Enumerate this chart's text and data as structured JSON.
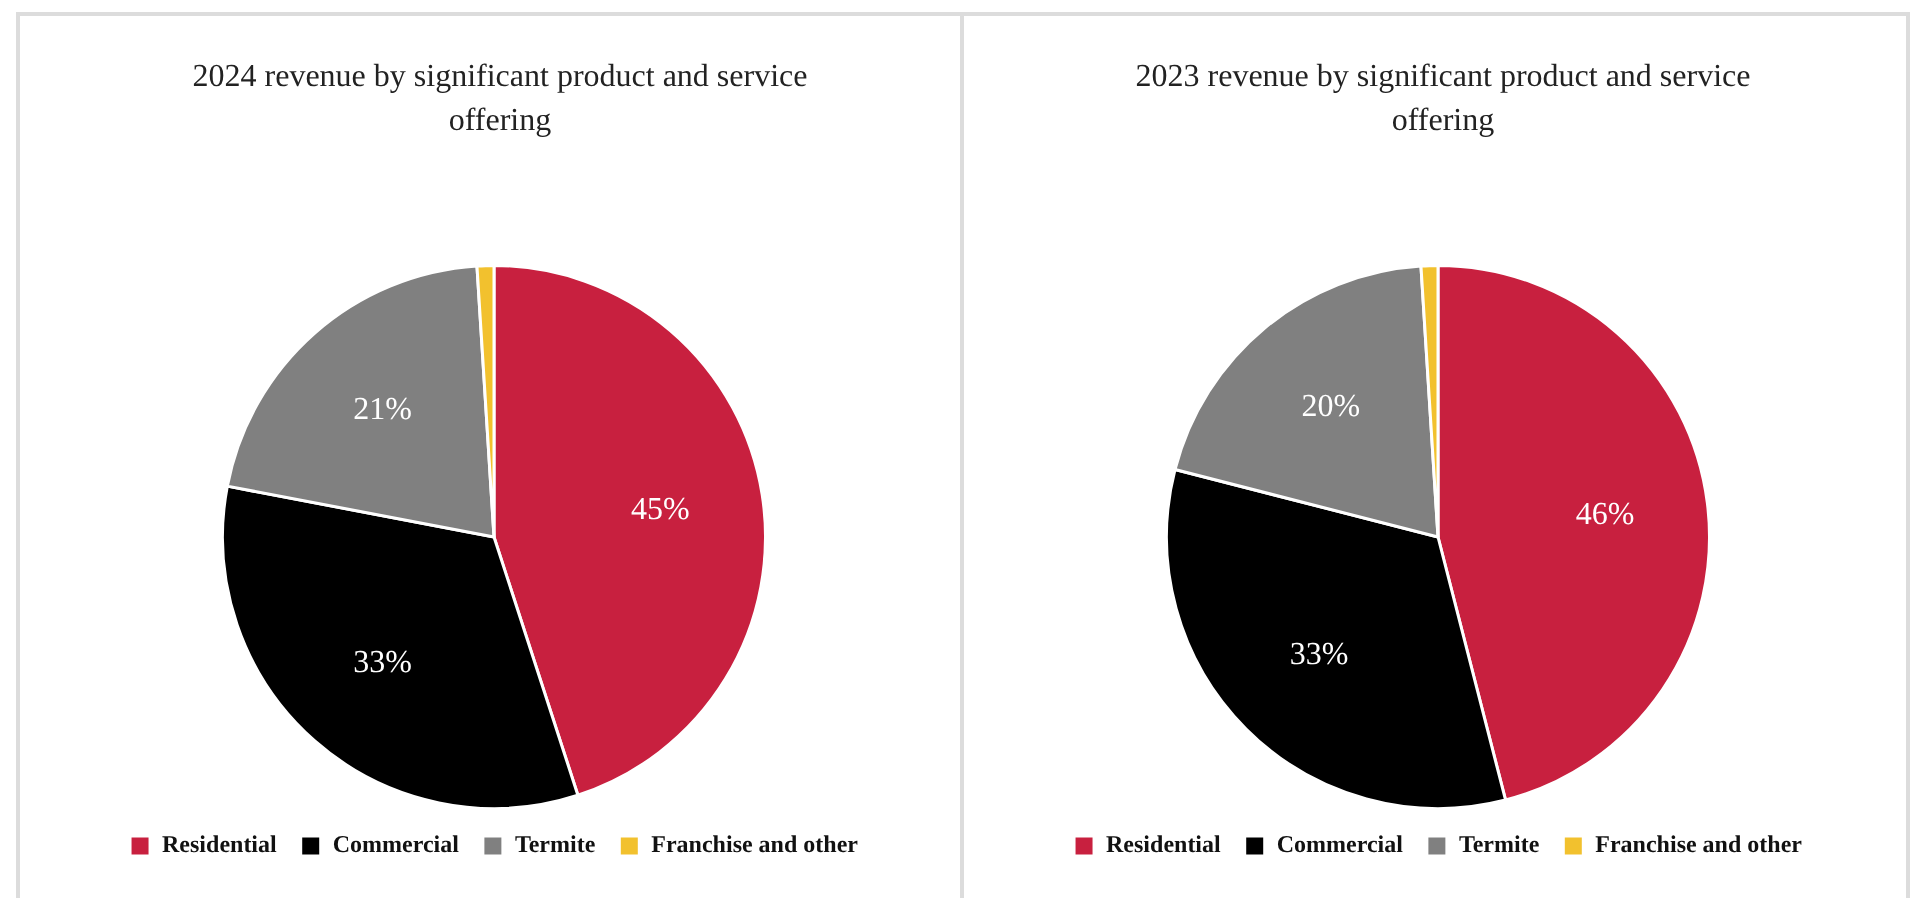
{
  "chart_data": [
    {
      "type": "pie",
      "title": "2024 revenue by significant product and service offering",
      "categories": [
        "Residential",
        "Commercial",
        "Termite",
        "Franchise and other"
      ],
      "values": [
        45,
        33,
        21,
        1
      ],
      "colors": [
        "#c8203f",
        "#000000",
        "#808080",
        "#f2c12e"
      ],
      "value_labels": [
        "45%",
        "33%",
        "21%",
        null
      ],
      "legend": "bottom"
    },
    {
      "type": "pie",
      "title": "2023 revenue by significant product and service offering",
      "categories": [
        "Residential",
        "Commercial",
        "Termite",
        "Franchise and other"
      ],
      "values": [
        46,
        33,
        20,
        1
      ],
      "colors": [
        "#c8203f",
        "#000000",
        "#808080",
        "#f2c12e"
      ],
      "value_labels": [
        "46%",
        "33%",
        "20%",
        null
      ],
      "legend": "bottom"
    }
  ]
}
